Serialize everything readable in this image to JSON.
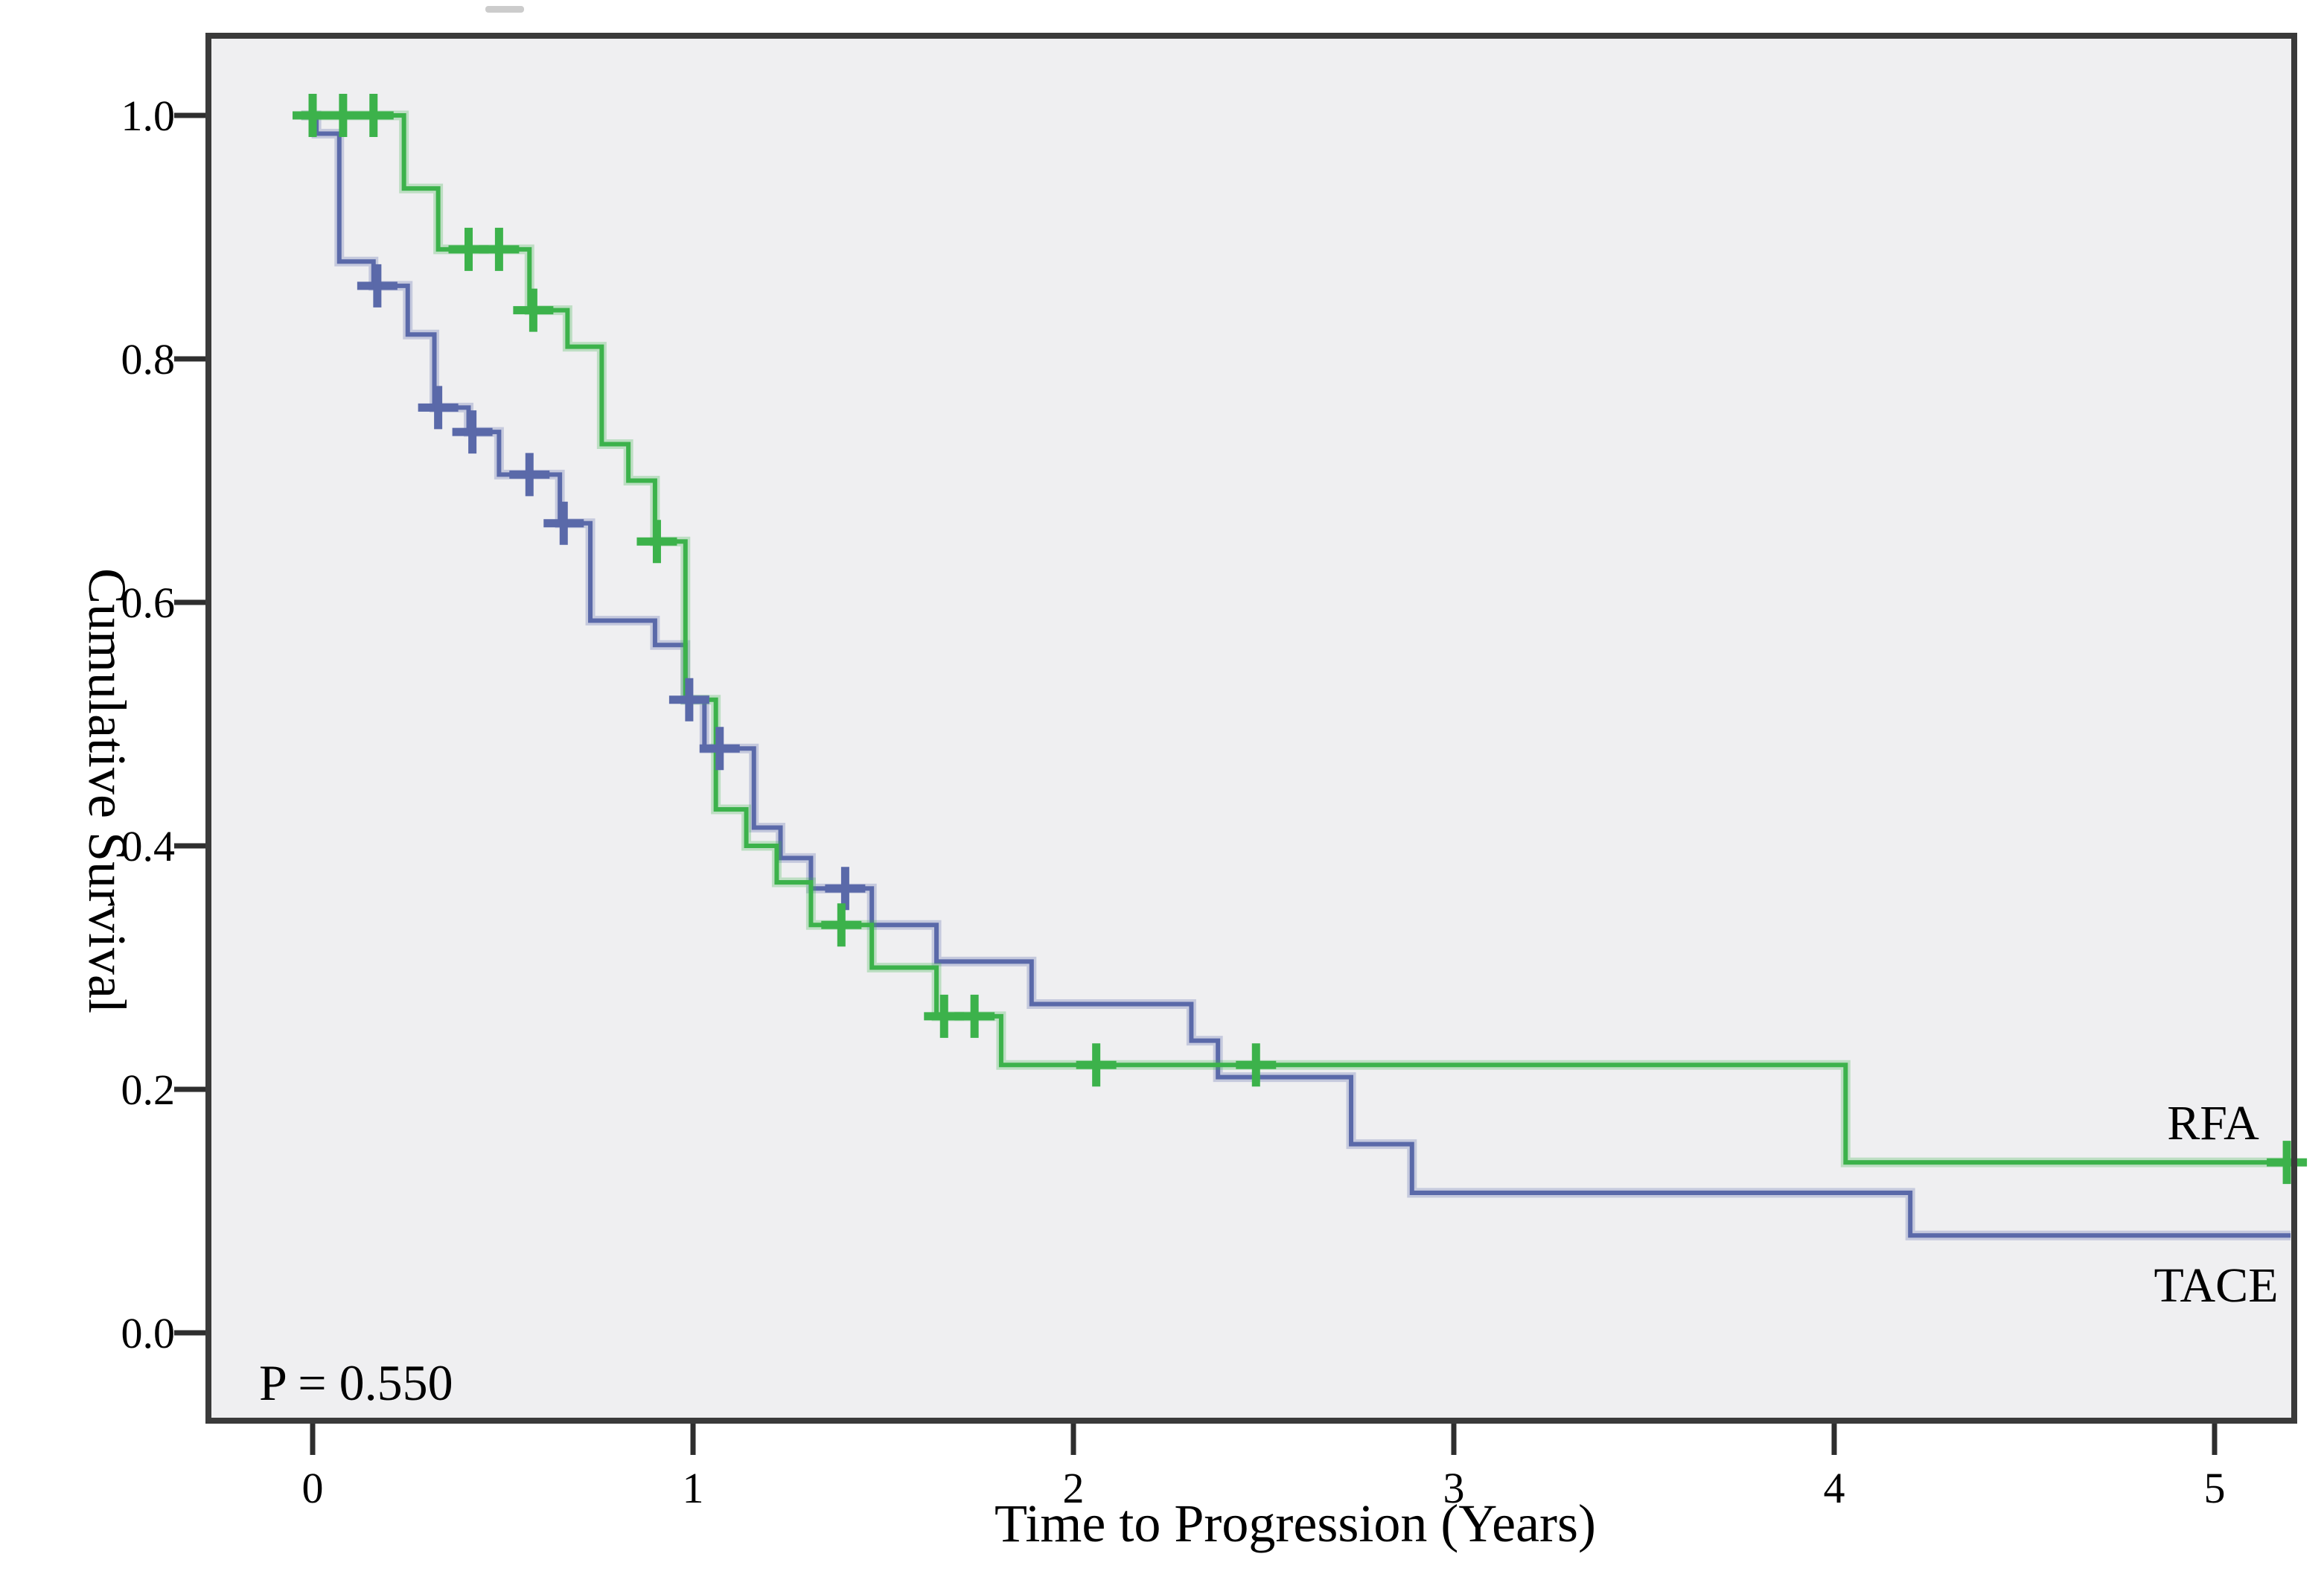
{
  "figure": {
    "background_color": "#ffffff",
    "plot_background_color": "#efeff1",
    "border_color": "#3a3a3a",
    "tick_color": "#2e2e2e"
  },
  "chart_data": {
    "type": "line",
    "subtype": "kaplan-meier-step",
    "title": "",
    "xlabel": "Time to Progression (Years)",
    "ylabel": "Cumulative Survival",
    "p_value": "P = 0.550",
    "xlim": [
      -0.28,
      5.21
    ],
    "ylim": [
      -0.07,
      1.08
    ],
    "grid": "off",
    "legend_position": "inline-right",
    "x_ticks": [
      {
        "label": "0",
        "value": 0
      },
      {
        "label": "1",
        "value": 1
      },
      {
        "label": "2",
        "value": 2
      },
      {
        "label": "3",
        "value": 3
      },
      {
        "label": "4",
        "value": 4
      },
      {
        "label": "5",
        "value": 5
      }
    ],
    "y_ticks": [
      {
        "label": "1.0",
        "value": 1.0
      },
      {
        "label": "0.8",
        "value": 0.8
      },
      {
        "label": "0.6",
        "value": 0.6
      },
      {
        "label": "0.4",
        "value": 0.4
      },
      {
        "label": "0.2",
        "value": 0.2
      },
      {
        "label": "0.0",
        "value": 0.0
      }
    ],
    "series": [
      {
        "name": "TACE",
        "color": "#5a69a9",
        "start_t": -0.03,
        "end_t": 5.2,
        "points": [
          [
            0.0,
            1.0
          ],
          [
            0.01,
            0.985
          ],
          [
            0.07,
            0.88
          ],
          [
            0.16,
            0.86
          ],
          [
            0.25,
            0.82
          ],
          [
            0.32,
            0.76
          ],
          [
            0.41,
            0.74
          ],
          [
            0.49,
            0.705
          ],
          [
            0.65,
            0.665
          ],
          [
            0.73,
            0.585
          ],
          [
            0.9,
            0.565
          ],
          [
            0.98,
            0.52
          ],
          [
            1.03,
            0.48
          ],
          [
            1.16,
            0.415
          ],
          [
            1.23,
            0.39
          ],
          [
            1.31,
            0.365
          ],
          [
            1.47,
            0.335
          ],
          [
            1.64,
            0.305
          ],
          [
            1.89,
            0.27
          ],
          [
            2.31,
            0.24
          ],
          [
            2.38,
            0.21
          ],
          [
            2.73,
            0.155
          ],
          [
            2.89,
            0.115
          ],
          [
            4.2,
            0.08
          ]
        ],
        "censors": [
          [
            0.17,
            0.86
          ],
          [
            0.33,
            0.76
          ],
          [
            0.42,
            0.74
          ],
          [
            0.57,
            0.705
          ],
          [
            0.66,
            0.665
          ],
          [
            0.99,
            0.52
          ],
          [
            1.07,
            0.48
          ],
          [
            1.4,
            0.365
          ]
        ]
      },
      {
        "name": "RFA",
        "color": "#3cb24b",
        "start_t": -0.03,
        "end_t": 5.2,
        "points": [
          [
            0.0,
            1.0
          ],
          [
            0.24,
            0.94
          ],
          [
            0.33,
            0.89
          ],
          [
            0.57,
            0.84
          ],
          [
            0.67,
            0.81
          ],
          [
            0.76,
            0.73
          ],
          [
            0.83,
            0.7
          ],
          [
            0.9,
            0.65
          ],
          [
            0.98,
            0.52
          ],
          [
            1.06,
            0.43
          ],
          [
            1.14,
            0.4
          ],
          [
            1.22,
            0.37
          ],
          [
            1.31,
            0.335
          ],
          [
            1.47,
            0.3
          ],
          [
            1.64,
            0.26
          ],
          [
            1.81,
            0.22
          ],
          [
            4.03,
            0.14
          ]
        ],
        "censors": [
          [
            0.0,
            1.0
          ],
          [
            0.08,
            1.0
          ],
          [
            0.16,
            1.0
          ],
          [
            0.41,
            0.89
          ],
          [
            0.49,
            0.89
          ],
          [
            0.58,
            0.84
          ],
          [
            0.905,
            0.65
          ],
          [
            1.39,
            0.335
          ],
          [
            1.66,
            0.26
          ],
          [
            1.74,
            0.26
          ],
          [
            2.06,
            0.22
          ],
          [
            2.48,
            0.22
          ],
          [
            5.19,
            0.14
          ]
        ]
      }
    ]
  },
  "annotations": {
    "rfa_label": "RFA",
    "tace_label": "TACE"
  }
}
